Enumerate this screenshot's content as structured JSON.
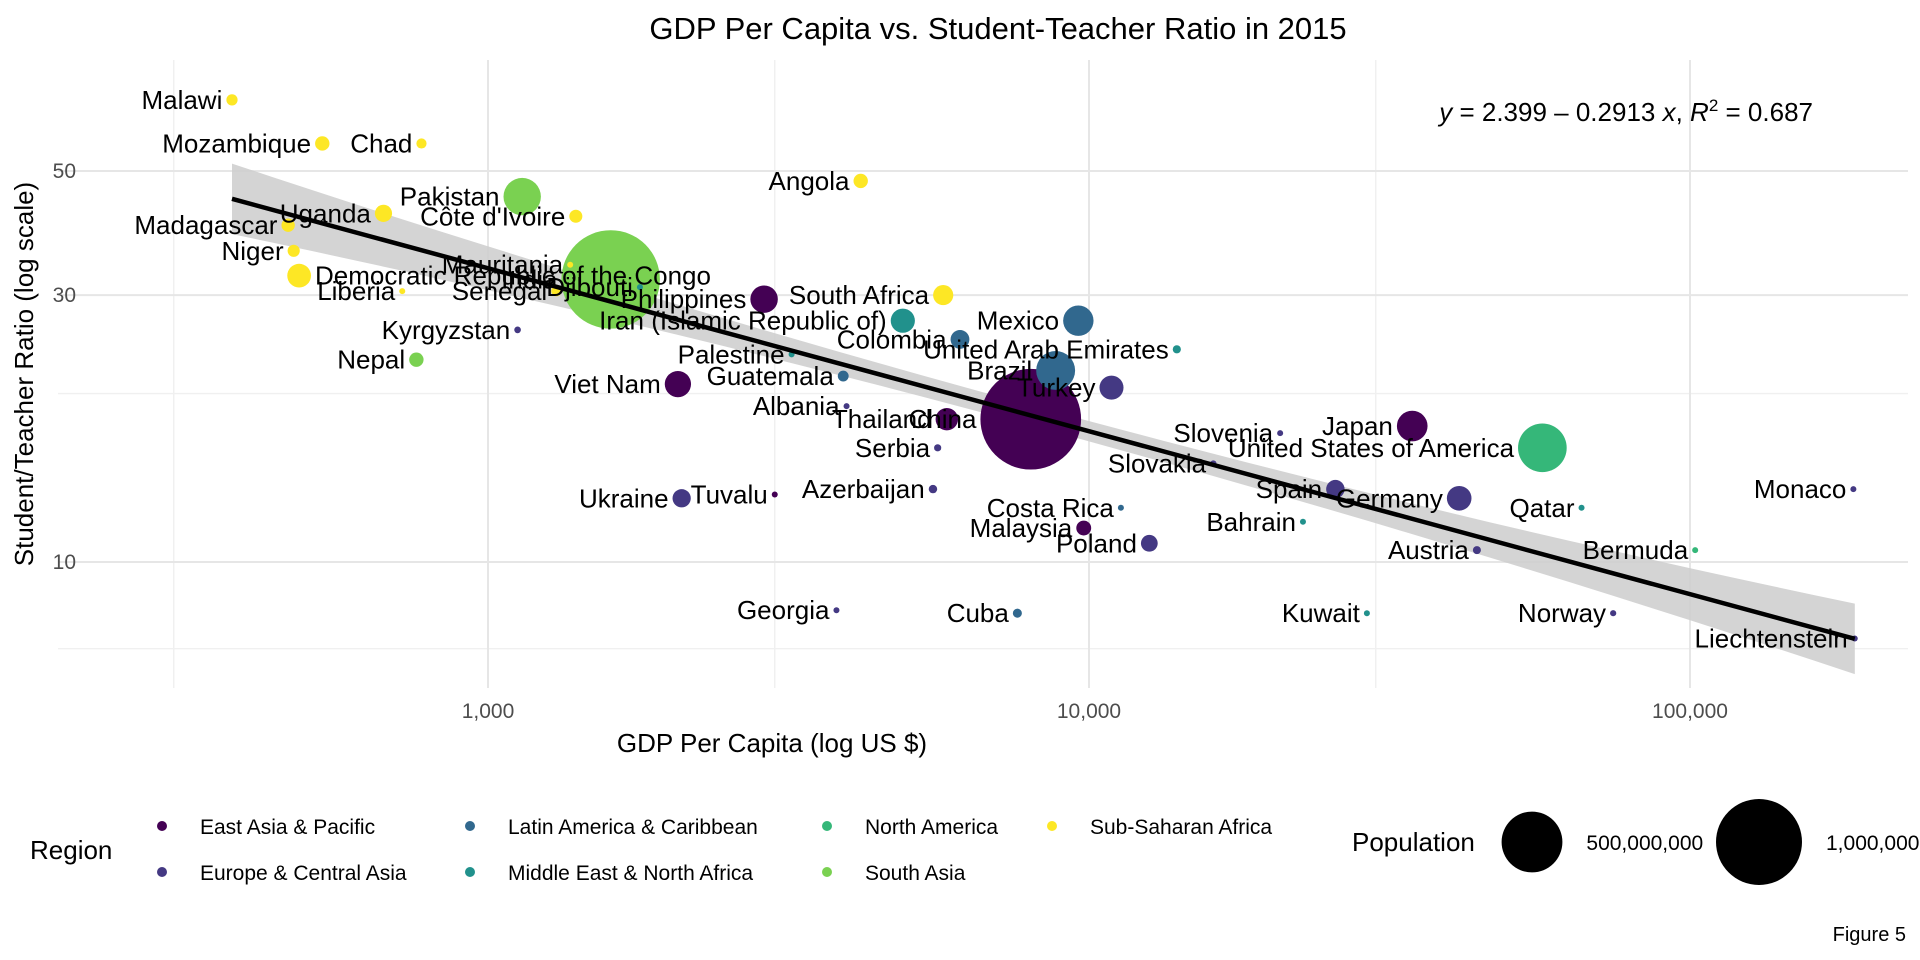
{
  "chart_data": {
    "type": "scatter",
    "title": "GDP Per Capita vs. Student-Teacher Ratio in 2015",
    "xlabel": "GDP Per Capita (log US $)",
    "ylabel": "Student/Teacher Ratio (log scale)",
    "x_scale": "log",
    "y_scale": "log",
    "xlim": [
      200,
      200000
    ],
    "ylim": [
      6,
      70
    ],
    "x_ticks": [
      {
        "value": 1000,
        "label": "1,000"
      },
      {
        "value": 10000,
        "label": "10,000"
      },
      {
        "value": 100000,
        "label": "100,000"
      }
    ],
    "y_ticks": [
      {
        "value": 10,
        "label": "10"
      },
      {
        "value": 30,
        "label": "30"
      },
      {
        "value": 50,
        "label": "50"
      }
    ],
    "grid": true,
    "regression": {
      "intercept": 2.399,
      "slope": -0.2913,
      "r2": 0.687
    },
    "equation_text": {
      "prefix": "y",
      "mid": " = 2.399 – 0.2913 ",
      "x": "x",
      "comma": ", ",
      "r": "R",
      "sup": "2",
      "tail": " = 0.687"
    },
    "legend_position": "bottom",
    "region_legend_title": "Region",
    "population_legend_title": "Population",
    "population_legend": [
      {
        "label": "500,000,000",
        "value": 500000000
      },
      {
        "label": "1,000,000,",
        "value": 1000000000
      }
    ],
    "regions": [
      {
        "name": "East Asia & Pacific",
        "color": "#440154"
      },
      {
        "name": "Europe & Central Asia",
        "color": "#443983"
      },
      {
        "name": "Latin America & Caribbean",
        "color": "#31688e"
      },
      {
        "name": "Middle East & North Africa",
        "color": "#21918c"
      },
      {
        "name": "North America",
        "color": "#35b779"
      },
      {
        "name": "South Asia",
        "color": "#7ad151"
      },
      {
        "name": "Sub-Saharan Africa",
        "color": "#fde725"
      }
    ],
    "points": [
      {
        "label": "Malawi",
        "x": 375,
        "y": 67,
        "region": "Sub-Saharan Africa",
        "pop": 17000000
      },
      {
        "label": "Mozambique",
        "x": 530,
        "y": 56,
        "region": "Sub-Saharan Africa",
        "pop": 28000000
      },
      {
        "label": "Chad",
        "x": 775,
        "y": 56,
        "region": "Sub-Saharan Africa",
        "pop": 14000000
      },
      {
        "label": "Pakistan",
        "x": 1140,
        "y": 45,
        "region": "South Asia",
        "pop": 189000000
      },
      {
        "label": "Angola",
        "x": 4170,
        "y": 48,
        "region": "Sub-Saharan Africa",
        "pop": 28000000
      },
      {
        "label": "Madagascar",
        "x": 465,
        "y": 40,
        "region": "Sub-Saharan Africa",
        "pop": 24000000
      },
      {
        "label": "Uganda",
        "x": 670,
        "y": 42,
        "region": "Sub-Saharan Africa",
        "pop": 40000000
      },
      {
        "label": "Côte d'Ivoire",
        "x": 1400,
        "y": 41.5,
        "region": "Sub-Saharan Africa",
        "pop": 23000000
      },
      {
        "label": "Niger",
        "x": 475,
        "y": 36,
        "region": "Sub-Saharan Africa",
        "pop": 20000000
      },
      {
        "label": "Mauritania",
        "x": 1370,
        "y": 34,
        "region": "Sub-Saharan Africa",
        "pop": 4000000
      },
      {
        "label": "Democratic Republic of the Congo",
        "x": 485,
        "y": 32.5,
        "region": "Sub-Saharan Africa",
        "pop": 76000000
      },
      {
        "label": "Djibouti",
        "x": 1790,
        "y": 31,
        "region": "Middle East & North Africa",
        "pop": 900000
      },
      {
        "label": "Senegal",
        "x": 1300,
        "y": 30.5,
        "region": "Sub-Saharan Africa",
        "pop": 15000000
      },
      {
        "label": "India",
        "x": 1600,
        "y": 32,
        "region": "South Asia",
        "pop": 1310000000
      },
      {
        "label": "Liberia",
        "x": 720,
        "y": 30.5,
        "region": "Sub-Saharan Africa",
        "pop": 4500000
      },
      {
        "label": "Philippines",
        "x": 2880,
        "y": 29.5,
        "region": "East Asia & Pacific",
        "pop": 102000000
      },
      {
        "label": "South Africa",
        "x": 5720,
        "y": 30,
        "region": "Sub-Saharan Africa",
        "pop": 55000000
      },
      {
        "label": "Kyrgyzstan",
        "x": 1120,
        "y": 26,
        "region": "Europe & Central Asia",
        "pop": 6000000
      },
      {
        "label": "Iran (Islamic Republic of)",
        "x": 4900,
        "y": 27,
        "region": "Middle East & North Africa",
        "pop": 79000000
      },
      {
        "label": "Mexico",
        "x": 9600,
        "y": 27,
        "region": "Latin America & Caribbean",
        "pop": 125000000
      },
      {
        "label": "Nepal",
        "x": 760,
        "y": 23,
        "region": "South Asia",
        "pop": 28000000
      },
      {
        "label": "Palestine",
        "x": 3200,
        "y": 23.5,
        "region": "Middle East & North Africa",
        "pop": 4500000
      },
      {
        "label": "Colombia",
        "x": 6100,
        "y": 25,
        "region": "Latin America & Caribbean",
        "pop": 48000000
      },
      {
        "label": "United Arab Emirates",
        "x": 14000,
        "y": 24,
        "region": "Middle East & North Africa",
        "pop": 9000000
      },
      {
        "label": "Viet Nam",
        "x": 2070,
        "y": 20.8,
        "region": "East Asia & Pacific",
        "pop": 93000000
      },
      {
        "label": "Guatemala",
        "x": 3900,
        "y": 21.5,
        "region": "Latin America & Caribbean",
        "pop": 16000000
      },
      {
        "label": "Albania",
        "x": 3950,
        "y": 19,
        "region": "Europe & Central Asia",
        "pop": 2900000
      },
      {
        "label": "Brazil",
        "x": 8800,
        "y": 22,
        "region": "Latin America & Caribbean",
        "pop": 205000000
      },
      {
        "label": "Turkey",
        "x": 10900,
        "y": 20.5,
        "region": "Europe & Central Asia",
        "pop": 78000000
      },
      {
        "label": "Thailand",
        "x": 5800,
        "y": 18,
        "region": "East Asia & Pacific",
        "pop": 68000000
      },
      {
        "label": "China",
        "x": 8000,
        "y": 18,
        "region": "East Asia & Pacific",
        "pop": 1370000000
      },
      {
        "label": "Slovenia",
        "x": 20800,
        "y": 17,
        "region": "Europe & Central Asia",
        "pop": 2000000
      },
      {
        "label": "Japan",
        "x": 34500,
        "y": 17.5,
        "region": "East Asia & Pacific",
        "pop": 127000000
      },
      {
        "label": "Serbia",
        "x": 5600,
        "y": 16,
        "region": "Europe & Central Asia",
        "pop": 7000000
      },
      {
        "label": "Slovakia",
        "x": 16100,
        "y": 15,
        "region": "Europe & Central Asia",
        "pop": 5400000
      },
      {
        "label": "United States of America",
        "x": 56800,
        "y": 16,
        "region": "North America",
        "pop": 320000000
      },
      {
        "label": "Azerbaijan",
        "x": 5500,
        "y": 13.5,
        "region": "Europe & Central Asia",
        "pop": 9600000
      },
      {
        "label": "Spain",
        "x": 25700,
        "y": 13.5,
        "region": "Europe & Central Asia",
        "pop": 46000000
      },
      {
        "label": "Costa Rica",
        "x": 11300,
        "y": 12.5,
        "region": "Latin America & Caribbean",
        "pop": 4800000
      },
      {
        "label": "Ukraine",
        "x": 2100,
        "y": 13,
        "region": "Europe & Central Asia",
        "pop": 45000000
      },
      {
        "label": "Tuvalu",
        "x": 3000,
        "y": 13.2,
        "region": "East Asia & Pacific",
        "pop": 11000
      },
      {
        "label": "Germany",
        "x": 41300,
        "y": 13,
        "region": "Europe & Central Asia",
        "pop": 82000000
      },
      {
        "label": "Qatar",
        "x": 66000,
        "y": 12.5,
        "region": "Middle East & North Africa",
        "pop": 2500000
      },
      {
        "label": "Monaco",
        "x": 187000,
        "y": 13.5,
        "region": "Europe & Central Asia",
        "pop": 38000
      },
      {
        "label": "Malaysia",
        "x": 9800,
        "y": 11.5,
        "region": "East Asia & Pacific",
        "pop": 30000000
      },
      {
        "label": "Bahrain",
        "x": 22700,
        "y": 11.8,
        "region": "Middle East & North Africa",
        "pop": 1400000
      },
      {
        "label": "Poland",
        "x": 12600,
        "y": 10.8,
        "region": "Europe & Central Asia",
        "pop": 38000000
      },
      {
        "label": "Austria",
        "x": 44200,
        "y": 10.5,
        "region": "Europe & Central Asia",
        "pop": 8700000
      },
      {
        "label": "Bermuda",
        "x": 102000,
        "y": 10.5,
        "region": "North America",
        "pop": 65000
      },
      {
        "label": "Georgia",
        "x": 3800,
        "y": 8.2,
        "region": "Europe & Central Asia",
        "pop": 3700000
      },
      {
        "label": "Cuba",
        "x": 7600,
        "y": 8.1,
        "region": "Latin America & Caribbean",
        "pop": 11000000
      },
      {
        "label": "Kuwait",
        "x": 29000,
        "y": 8.1,
        "region": "Middle East & North Africa",
        "pop": 3900000
      },
      {
        "label": "Norway",
        "x": 74500,
        "y": 8.1,
        "region": "Europe & Central Asia",
        "pop": 5200000
      },
      {
        "label": "Liechtenstein",
        "x": 188000,
        "y": 7.3,
        "region": "Europe & Central Asia",
        "pop": 37000
      }
    ]
  },
  "figure_note": "Figure 5"
}
